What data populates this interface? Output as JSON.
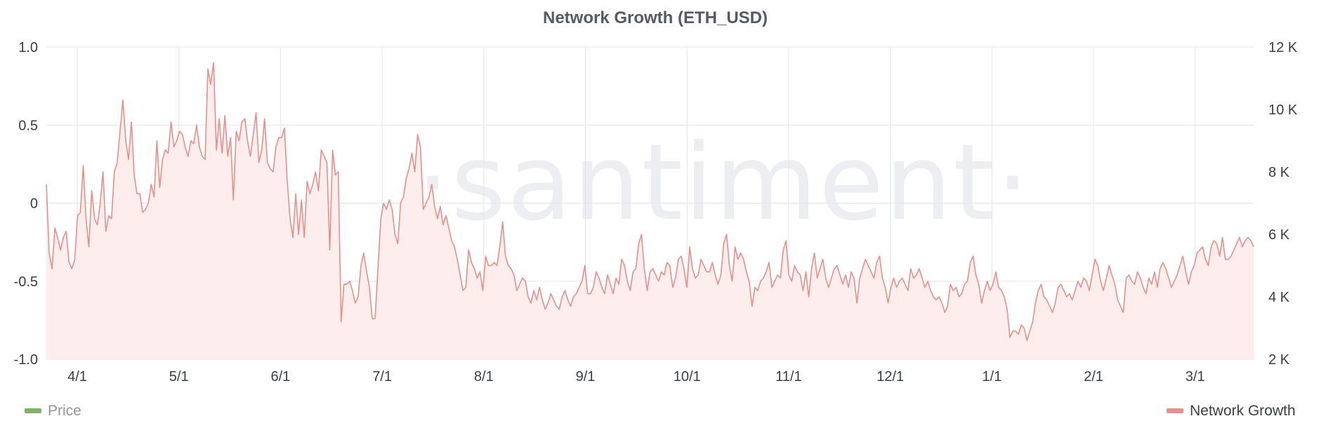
{
  "chart_data": {
    "type": "line",
    "title": "Network Growth (ETH_USD)",
    "watermark": "·santiment·",
    "x_ticks": [
      "4/1",
      "5/1",
      "6/1",
      "7/1",
      "8/1",
      "9/1",
      "10/1",
      "11/1",
      "12/1",
      "1/1",
      "2/1",
      "3/1"
    ],
    "y_left": {
      "ticks": [
        "1.0",
        "0.5",
        "0",
        "-0.5",
        "-1.0"
      ],
      "ylim": [
        -1.0,
        1.0
      ]
    },
    "y_right": {
      "ticks": [
        "12 K",
        "10 K",
        "8 K",
        "6 K",
        "4 K",
        "2 K"
      ],
      "ylim": [
        2000,
        12000
      ]
    },
    "grid": true,
    "legend": [
      {
        "label": "Price",
        "color": "#7fb36a",
        "placement": "bottom-left"
      },
      {
        "label": "Network Growth",
        "color": "#e6908c",
        "placement": "bottom-right"
      }
    ],
    "series": [
      {
        "name": "Network Growth",
        "axis": "right",
        "color": "#e6908c",
        "fill": "#fdeeed",
        "values": [
          7600,
          5400,
          4900,
          6200,
          5900,
          5500,
          5900,
          6100,
          5100,
          4900,
          5200,
          6600,
          6700,
          8200,
          6500,
          5600,
          7400,
          6500,
          6300,
          7000,
          8000,
          6100,
          6600,
          6500,
          8000,
          8300,
          9300,
          10300,
          9000,
          8400,
          9600,
          7900,
          7300,
          7300,
          6700,
          6800,
          7000,
          7600,
          7200,
          9000,
          7500,
          8400,
          8700,
          8600,
          9600,
          8800,
          9000,
          9300,
          9200,
          8800,
          8500,
          9000,
          8900,
          9500,
          8800,
          8500,
          8400,
          11300,
          10800,
          11500,
          8700,
          9700,
          8600,
          9800,
          8500,
          9100,
          7100,
          9300,
          9000,
          9600,
          9700,
          9000,
          8500,
          9200,
          9900,
          8300,
          8700,
          9700,
          8300,
          8100,
          8000,
          8800,
          9100,
          9100,
          9400,
          7700,
          6500,
          5900,
          7300,
          6000,
          7100,
          5900,
          7700,
          7300,
          7600,
          8000,
          7400,
          8700,
          8500,
          8300,
          5500,
          8700,
          7900,
          8000,
          3200,
          4400,
          4400,
          4500,
          4200,
          3800,
          4000,
          5000,
          5400,
          4800,
          4300,
          3300,
          3300,
          4900,
          6500,
          7000,
          6800,
          7100,
          6800,
          6000,
          5700,
          7000,
          7200,
          7800,
          8100,
          8600,
          8000,
          9200,
          8800,
          6800,
          7000,
          7200,
          7600,
          6900,
          6500,
          6900,
          6300,
          6600,
          6200,
          5800,
          5600,
          5200,
          4700,
          4200,
          4300,
          5500,
          5100,
          4900,
          4600,
          4800,
          4200,
          5300,
          5000,
          5000,
          5100,
          5000,
          5600,
          6400,
          5300,
          5000,
          4900,
          4700,
          4200,
          4400,
          4600,
          4500,
          4000,
          3800,
          4200,
          3900,
          4300,
          3900,
          3600,
          3800,
          4100,
          3900,
          3700,
          3600,
          4000,
          4200,
          3900,
          3700,
          4000,
          4100,
          4300,
          4500,
          5000,
          4100,
          4100,
          4300,
          4800,
          4600,
          4300,
          4100,
          4700,
          4400,
          4100,
          4600,
          4400,
          5200,
          5000,
          4500,
          4200,
          4800,
          4900,
          5700,
          6000,
          4900,
          4200,
          4800,
          4900,
          4700,
          4500,
          4800,
          4700,
          5100,
          5000,
          4300,
          4600,
          5200,
          5300,
          4900,
          4300,
          5600,
          4900,
          4600,
          4700,
          5200,
          5000,
          4800,
          4800,
          5100,
          4700,
          4400,
          4700,
          5700,
          6000,
          5000,
          4500,
          5600,
          5200,
          5400,
          5200,
          4800,
          4500,
          3700,
          4300,
          4200,
          4500,
          4600,
          4800,
          5100,
          4300,
          4500,
          4700,
          4600,
          5500,
          5800,
          4700,
          4500,
          5000,
          4800,
          4700,
          4200,
          4800,
          4000,
          4900,
          5400,
          4600,
          4900,
          5200,
          4600,
          4300,
          4600,
          4900,
          5000,
          4700,
          4400,
          4700,
          4300,
          4800,
          4600,
          3800,
          4600,
          4900,
          5200,
          5000,
          4800,
          4600,
          5100,
          5300,
          4600,
          4300,
          3800,
          4300,
          4600,
          4300,
          4500,
          4600,
          4400,
          4200,
          4900,
          4600,
          4700,
          4900,
          4600,
          4300,
          4500,
          4200,
          4000,
          3900,
          4000,
          3800,
          3500,
          3700,
          4400,
          4200,
          4300,
          4000,
          4100,
          4400,
          4500,
          5100,
          5300,
          4700,
          4400,
          3800,
          4200,
          4500,
          4200,
          4400,
          4800,
          4300,
          4200,
          4000,
          3600,
          2700,
          2900,
          2900,
          2800,
          3100,
          3000,
          2600,
          2900,
          3200,
          3800,
          4200,
          4400,
          4000,
          3900,
          3700,
          3500,
          3800,
          4300,
          4400,
          4200,
          4000,
          4100,
          3900,
          4200,
          4500,
          4300,
          4600,
          4500,
          4200,
          4700,
          5200,
          5000,
          4500,
          4200,
          4600,
          5000,
          4700,
          4400,
          3900,
          3700,
          3500,
          4600,
          4700,
          4500,
          4400,
          4800,
          4600,
          4300,
          4100,
          4600,
          4400,
          4800,
          4300,
          4900,
          5100,
          4900,
          4600,
          4300,
          4500,
          4700,
          5000,
          5300,
          4800,
          4400,
          4800,
          5000,
          5400,
          5500,
          5600,
          5200,
          5000,
          5600,
          5800,
          5700,
          5300,
          5900,
          5200,
          5200,
          5300,
          5500,
          5700,
          5900,
          5600,
          5800,
          5900,
          5800,
          5600
        ]
      }
    ]
  }
}
